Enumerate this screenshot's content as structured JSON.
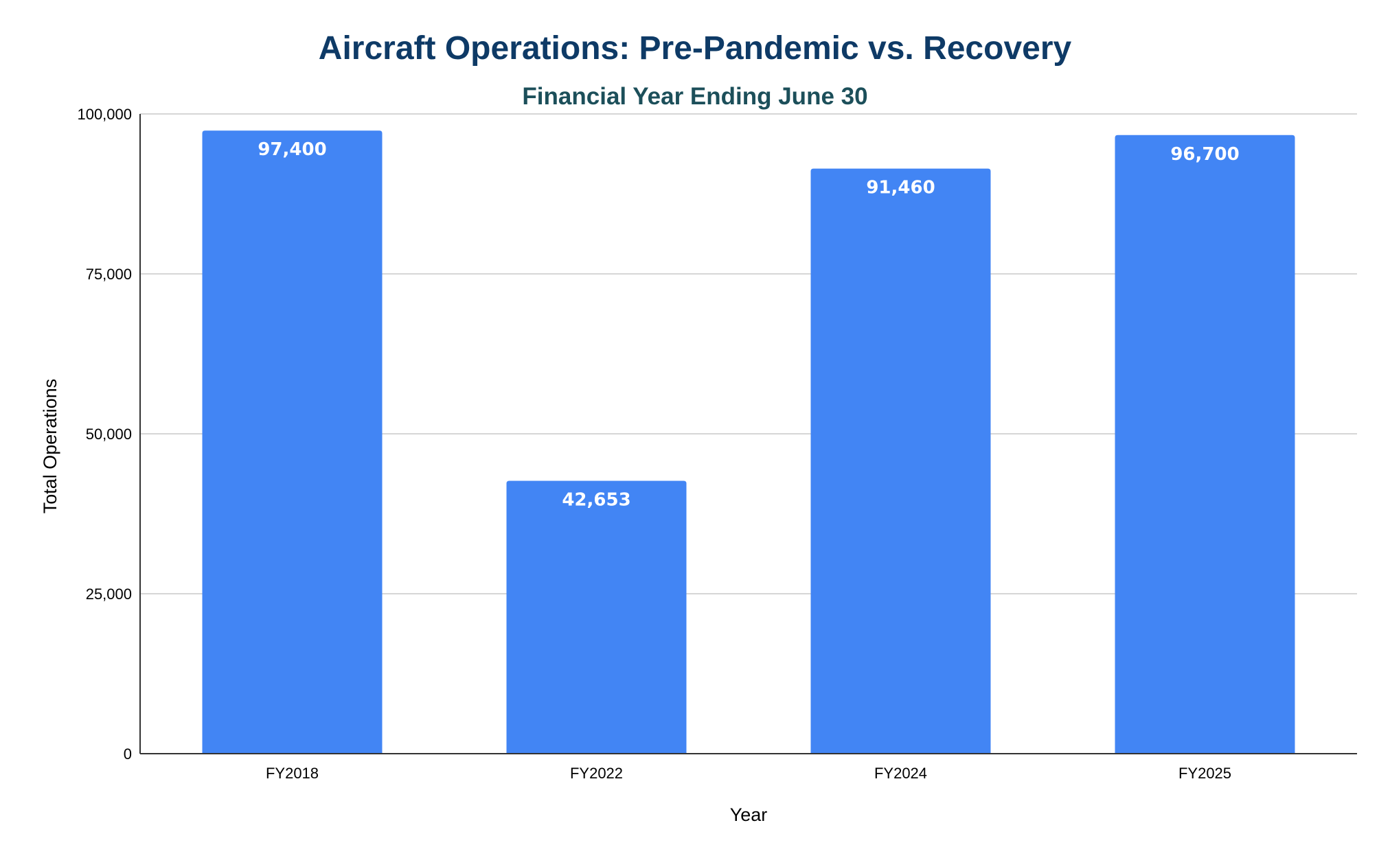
{
  "chart_data": {
    "type": "bar",
    "title": "Aircraft Operations: Pre-Pandemic vs. Recovery",
    "subtitle": "Financial Year Ending June 30",
    "xlabel": "Year",
    "ylabel": "Total Operations",
    "categories": [
      "FY2018",
      "FY2022",
      "FY2024",
      "FY2025"
    ],
    "values": [
      97400,
      42653,
      91460,
      96700
    ],
    "data_labels": [
      "97,400",
      "42,653",
      "91,460",
      "96,700"
    ],
    "ylim": [
      0,
      100000
    ],
    "y_ticks": [
      {
        "value": 0,
        "label": "0"
      },
      {
        "value": 25000,
        "label": "25,000"
      },
      {
        "value": 50000,
        "label": "50,000"
      },
      {
        "value": 75000,
        "label": "75,000"
      },
      {
        "value": 100000,
        "label": "100,000"
      }
    ],
    "grid": true,
    "legend": "none",
    "colors": {
      "bar": "#4285f4",
      "title": "#0e3a66",
      "subtitle": "#1c4f5a",
      "gridline": "#c8c8c8",
      "axis": "#333333",
      "data_label": "#ffffff"
    }
  }
}
